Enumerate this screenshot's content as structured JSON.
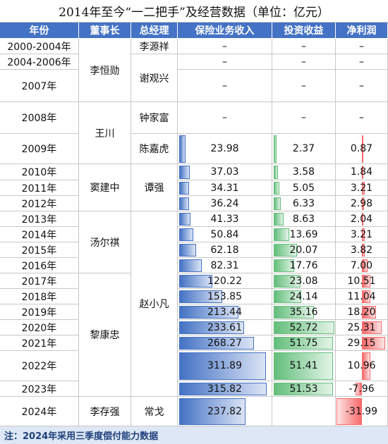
{
  "title": "2014年至今“一二把手”及经营数据（单位：亿元）",
  "headers": [
    "年份",
    "董事长",
    "总经理",
    "保险业务收入",
    "投资收益",
    "净利润"
  ],
  "chairmen": [
    "李恒勋",
    "王川",
    "窦建中",
    "汤尔祺",
    "黎康忠",
    "李存强"
  ],
  "managers": [
    "李源祥",
    "谢观兴",
    "钟家富",
    "陈嘉虎",
    "谭强",
    "赵小凡",
    "常戈"
  ],
  "rows": [
    {
      "year": "2000-2004年",
      "revenue": "–",
      "investment": "–",
      "profit": "–"
    },
    {
      "year": "2004-2006年",
      "revenue": "–",
      "investment": "–",
      "profit": "–"
    },
    {
      "year": "2007年",
      "revenue": "–",
      "investment": "–",
      "profit": "–"
    },
    {
      "year": "2008年",
      "revenue": "–",
      "investment": "–",
      "profit": "–"
    },
    {
      "year": "2009年",
      "revenue": 23.98,
      "investment": 2.37,
      "profit": 0.87
    },
    {
      "year": "2010年",
      "revenue": 37.03,
      "investment": 3.58,
      "profit": 1.84
    },
    {
      "year": "2011年",
      "revenue": 34.31,
      "investment": 5.05,
      "profit": 3.21
    },
    {
      "year": "2012年",
      "revenue": 36.24,
      "investment": 6.33,
      "profit": 2.98
    },
    {
      "year": "2013年",
      "revenue": 41.33,
      "investment": 8.63,
      "profit": 2.04
    },
    {
      "year": "2014年",
      "revenue": 50.84,
      "investment": 13.69,
      "profit": 3.21
    },
    {
      "year": "2015年",
      "revenue": 62.18,
      "investment": 20.07,
      "profit": 3.82
    },
    {
      "year": "2016年",
      "revenue": 82.31,
      "investment": 17.76,
      "profit": {
        "value": 7,
        "label": "7.00"
      }
    },
    {
      "year": "2017年",
      "revenue": 120.22,
      "investment": 23.08,
      "profit": 10.51
    },
    {
      "year": "2018年",
      "revenue": 153.85,
      "investment": 24.14,
      "profit": 11.04
    },
    {
      "year": "2019年",
      "revenue": 213.44,
      "investment": 35.16,
      "profit": {
        "value": 18.2,
        "label": "18.20"
      }
    },
    {
      "year": "2020年",
      "revenue": 233.61,
      "investment": 52.72,
      "profit": 25.31
    },
    {
      "year": "2021年",
      "revenue": 268.27,
      "investment": 51.75,
      "profit": 29.15
    },
    {
      "year": "2022年",
      "revenue": 311.89,
      "investment": 51.41,
      "profit": 10.96
    },
    {
      "year": "2023年",
      "revenue": 315.82,
      "investment": 51.53,
      "profit": -7.96
    },
    {
      "year": "2024年",
      "revenue": 237.82,
      "investment": null,
      "profit": -31.99
    }
  ],
  "footer": "注：2024年采用三季度偿付能力数据"
}
